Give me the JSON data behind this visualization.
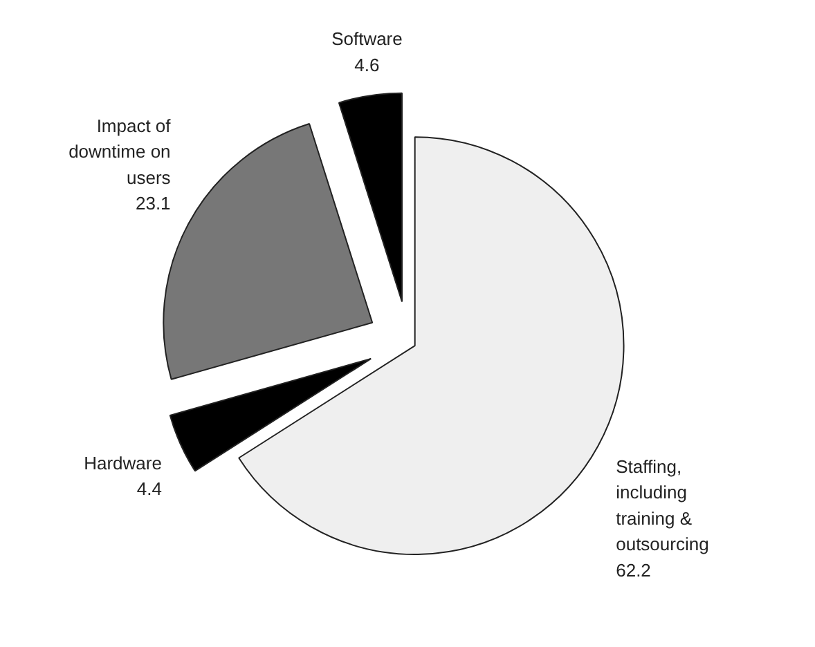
{
  "chart_data": {
    "type": "pie",
    "categories": [
      "Staffing, including training & outsourcing",
      "Hardware",
      "Impact of downtime on users",
      "Software"
    ],
    "values": [
      62.2,
      4.4,
      23.1,
      4.6
    ],
    "colors": [
      "#efefef",
      "#000000",
      "#777777",
      "#000000"
    ],
    "data_labels": true
  }
}
